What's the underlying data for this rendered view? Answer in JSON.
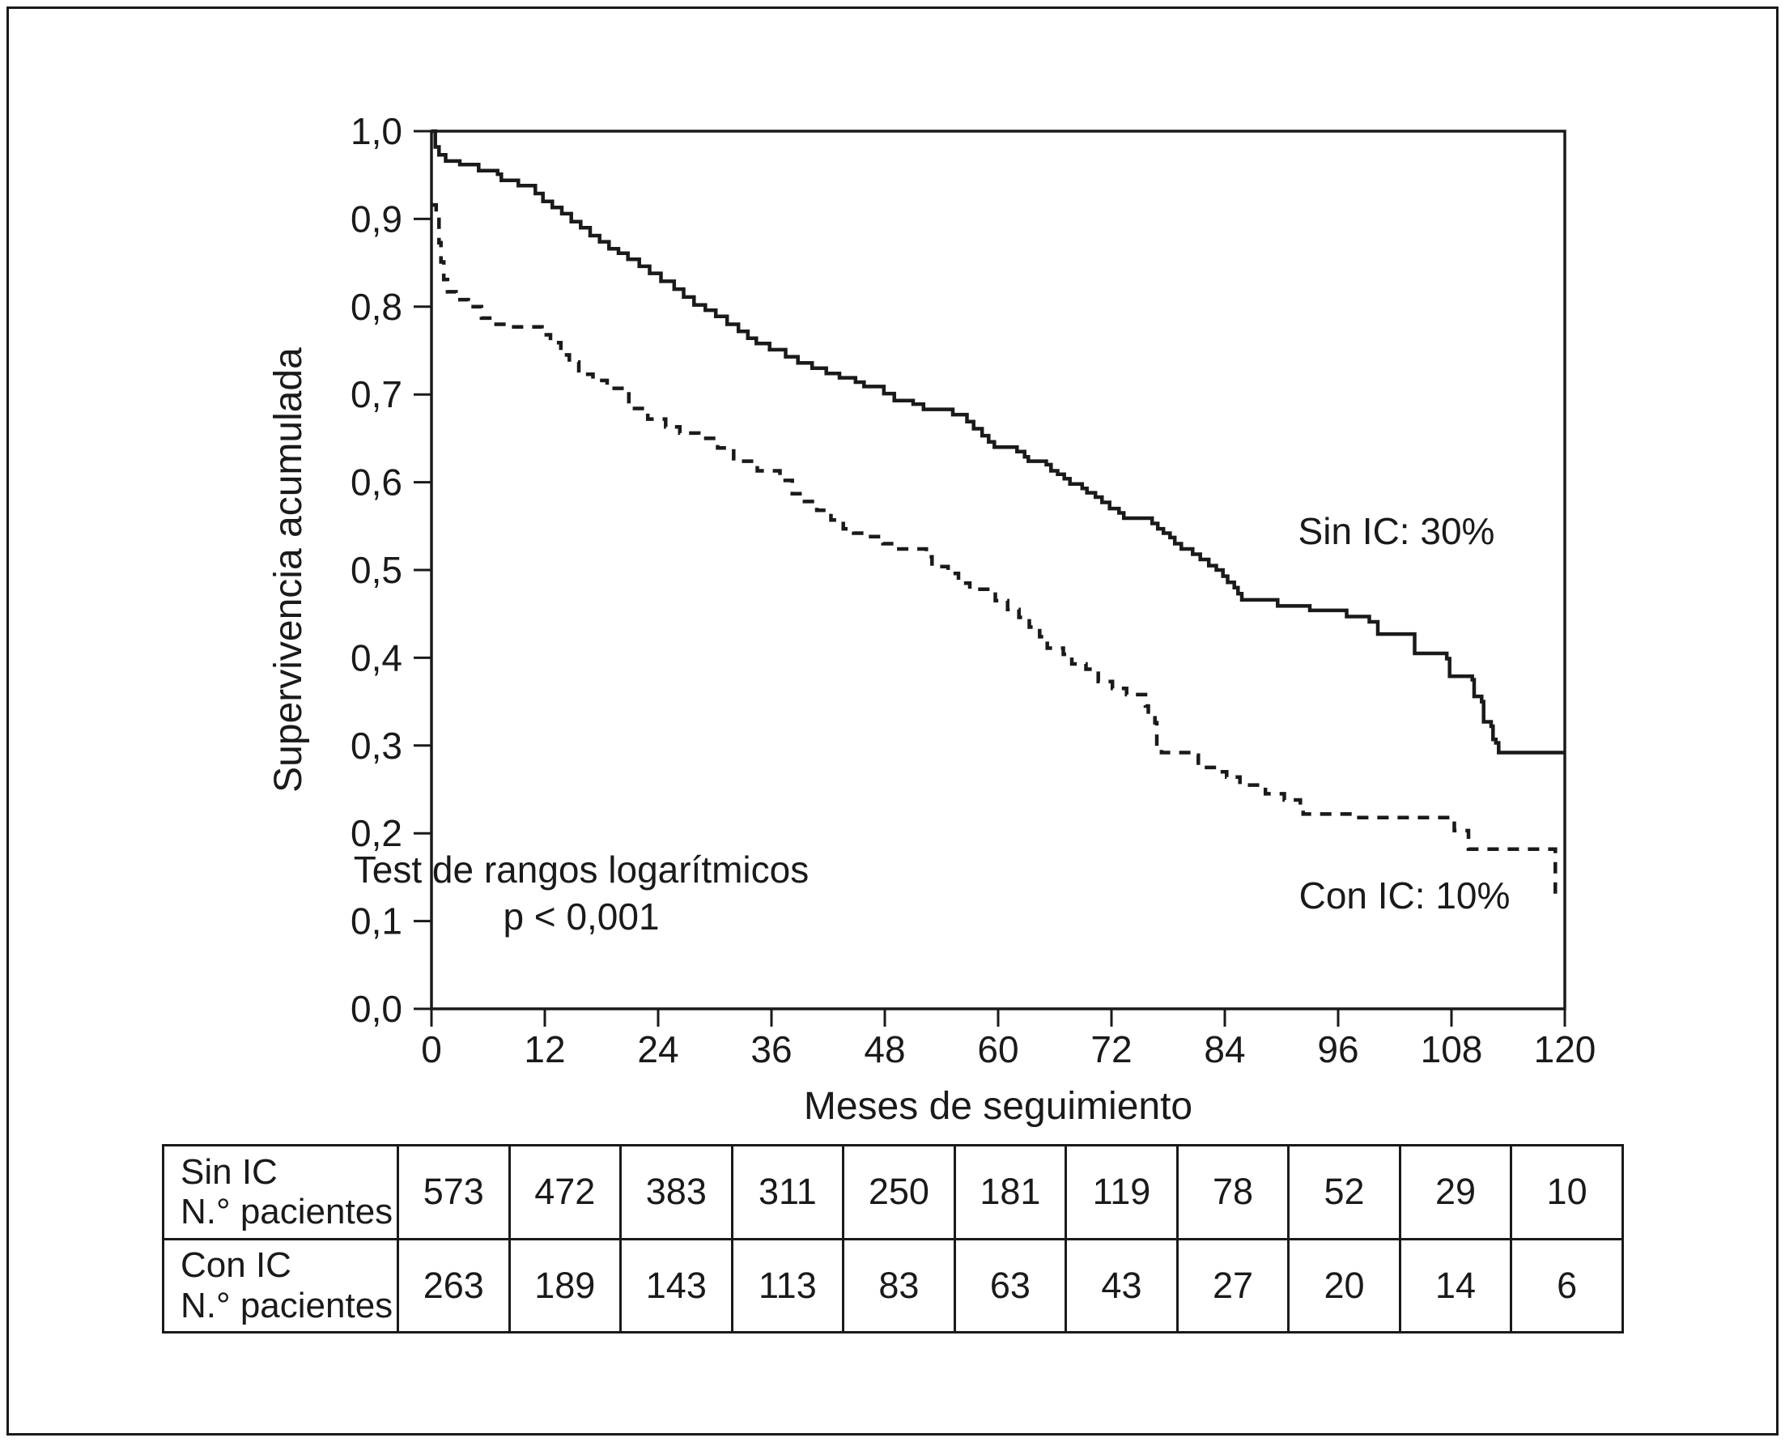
{
  "chart_data": {
    "type": "line",
    "subtype": "kaplan-meier-step",
    "xlabel": "Meses de seguimiento",
    "ylabel": "Supervivencia acumulada",
    "xlim": [
      0,
      120
    ],
    "ylim": [
      0.0,
      1.0
    ],
    "x_ticks": {
      "values": [
        0,
        12,
        24,
        36,
        48,
        60,
        72,
        84,
        96,
        108,
        120
      ],
      "labels": [
        "0",
        "12",
        "24",
        "36",
        "48",
        "60",
        "72",
        "84",
        "96",
        "108",
        "120"
      ]
    },
    "y_ticks": {
      "values": [
        0.0,
        0.1,
        0.2,
        0.3,
        0.4,
        0.5,
        0.6,
        0.7,
        0.8,
        0.9,
        1.0
      ],
      "labels": [
        "0,0",
        "0,1",
        "0,2",
        "0,3",
        "0,4",
        "0,5",
        "0,6",
        "0,7",
        "0,8",
        "0,9",
        "1,0"
      ]
    },
    "grid": "off",
    "legend_position": "labels-on-plot",
    "annotation": {
      "line1": "Test de rangos logarítmicos",
      "line2": "p < 0,001"
    },
    "series": [
      {
        "name": "Sin IC",
        "label": "Sin IC: 30%",
        "line_style": "solid",
        "color": "#1a1a1a",
        "points": [
          [
            0,
            1.0
          ],
          [
            0.4,
            0.982
          ],
          [
            0.8,
            0.973
          ],
          [
            1.5,
            0.966
          ],
          [
            3,
            0.962
          ],
          [
            5,
            0.955
          ],
          [
            7,
            0.951
          ],
          [
            7.4,
            0.944
          ],
          [
            9.2,
            0.938
          ],
          [
            11,
            0.929
          ],
          [
            11.8,
            0.92
          ],
          [
            12.8,
            0.913
          ],
          [
            13.8,
            0.906
          ],
          [
            14.8,
            0.897
          ],
          [
            15.8,
            0.89
          ],
          [
            16.8,
            0.881
          ],
          [
            17.8,
            0.874
          ],
          [
            18.8,
            0.866
          ],
          [
            19.8,
            0.861
          ],
          [
            20.8,
            0.854
          ],
          [
            22,
            0.846
          ],
          [
            23.1,
            0.838
          ],
          [
            24.3,
            0.829
          ],
          [
            25.7,
            0.82
          ],
          [
            26.7,
            0.811
          ],
          [
            27.8,
            0.802
          ],
          [
            29,
            0.796
          ],
          [
            30.1,
            0.789
          ],
          [
            31.3,
            0.78
          ],
          [
            32.5,
            0.772
          ],
          [
            33.5,
            0.764
          ],
          [
            34.4,
            0.758
          ],
          [
            35.8,
            0.751
          ],
          [
            37.5,
            0.743
          ],
          [
            38.8,
            0.736
          ],
          [
            40.3,
            0.73
          ],
          [
            41.8,
            0.724
          ],
          [
            43.2,
            0.719
          ],
          [
            44.9,
            0.714
          ],
          [
            45.8,
            0.709
          ],
          [
            47.9,
            0.701
          ],
          [
            49,
            0.693
          ],
          [
            51,
            0.689
          ],
          [
            52.1,
            0.683
          ],
          [
            55.2,
            0.677
          ],
          [
            56.7,
            0.669
          ],
          [
            57.4,
            0.661
          ],
          [
            58.3,
            0.653
          ],
          [
            59,
            0.646
          ],
          [
            59.6,
            0.64
          ],
          [
            62,
            0.635
          ],
          [
            62.8,
            0.629
          ],
          [
            63.2,
            0.624
          ],
          [
            65.1,
            0.62
          ],
          [
            65.6,
            0.613
          ],
          [
            66.3,
            0.609
          ],
          [
            67,
            0.604
          ],
          [
            67.6,
            0.598
          ],
          [
            68.9,
            0.593
          ],
          [
            69.4,
            0.588
          ],
          [
            70.3,
            0.583
          ],
          [
            71,
            0.577
          ],
          [
            71.8,
            0.57
          ],
          [
            72.8,
            0.565
          ],
          [
            73.3,
            0.559
          ],
          [
            76.3,
            0.553
          ],
          [
            76.9,
            0.547
          ],
          [
            77.5,
            0.542
          ],
          [
            78.2,
            0.537
          ],
          [
            78.7,
            0.53
          ],
          [
            79.4,
            0.524
          ],
          [
            80.6,
            0.518
          ],
          [
            81.4,
            0.512
          ],
          [
            82.3,
            0.505
          ],
          [
            83.1,
            0.5
          ],
          [
            83.8,
            0.493
          ],
          [
            84.3,
            0.486
          ],
          [
            85,
            0.48
          ],
          [
            85.4,
            0.473
          ],
          [
            85.8,
            0.466
          ],
          [
            89.6,
            0.459
          ],
          [
            93,
            0.454
          ],
          [
            96.9,
            0.447
          ],
          [
            99.3,
            0.441
          ],
          [
            100.2,
            0.427
          ],
          [
            104.1,
            0.405
          ],
          [
            107.5,
            0.399
          ],
          [
            107.8,
            0.379
          ],
          [
            110.2,
            0.375
          ],
          [
            110.4,
            0.356
          ],
          [
            111.2,
            0.35
          ],
          [
            111.4,
            0.327
          ],
          [
            112.2,
            0.322
          ],
          [
            112.4,
            0.307
          ],
          [
            112.7,
            0.303
          ],
          [
            113,
            0.292
          ],
          [
            120,
            0.292
          ]
        ]
      },
      {
        "name": "Con IC",
        "label": "Con IC: 10%",
        "line_style": "dashed",
        "color": "#1a1a1a",
        "points": [
          [
            0,
            0.916
          ],
          [
            0.5,
            0.903
          ],
          [
            0.8,
            0.873
          ],
          [
            1,
            0.851
          ],
          [
            1.3,
            0.831
          ],
          [
            1.7,
            0.817
          ],
          [
            2.6,
            0.808
          ],
          [
            3.9,
            0.8
          ],
          [
            5.3,
            0.787
          ],
          [
            6.6,
            0.78
          ],
          [
            8.3,
            0.777
          ],
          [
            11.7,
            0.768
          ],
          [
            12.6,
            0.759
          ],
          [
            13.7,
            0.745
          ],
          [
            14.6,
            0.737
          ],
          [
            15.6,
            0.723
          ],
          [
            17.1,
            0.716
          ],
          [
            18.6,
            0.707
          ],
          [
            20.9,
            0.684
          ],
          [
            22.9,
            0.672
          ],
          [
            24.8,
            0.663
          ],
          [
            26.3,
            0.656
          ],
          [
            28.3,
            0.65
          ],
          [
            30.3,
            0.639
          ],
          [
            32,
            0.624
          ],
          [
            34.5,
            0.613
          ],
          [
            36.9,
            0.602
          ],
          [
            38.2,
            0.587
          ],
          [
            39.5,
            0.578
          ],
          [
            40.8,
            0.568
          ],
          [
            42.3,
            0.557
          ],
          [
            43.6,
            0.547
          ],
          [
            44.7,
            0.542
          ],
          [
            46.3,
            0.538
          ],
          [
            47.8,
            0.53
          ],
          [
            49,
            0.524
          ],
          [
            52.4,
            0.515
          ],
          [
            53,
            0.504
          ],
          [
            54.7,
            0.496
          ],
          [
            55.8,
            0.485
          ],
          [
            57,
            0.478
          ],
          [
            59.7,
            0.465
          ],
          [
            61,
            0.455
          ],
          [
            62.2,
            0.446
          ],
          [
            63.3,
            0.435
          ],
          [
            64.4,
            0.424
          ],
          [
            65.2,
            0.411
          ],
          [
            66.9,
            0.404
          ],
          [
            67.8,
            0.393
          ],
          [
            69.3,
            0.387
          ],
          [
            70.6,
            0.373
          ],
          [
            72.1,
            0.365
          ],
          [
            73.6,
            0.358
          ],
          [
            75.6,
            0.345
          ],
          [
            75.9,
            0.335
          ],
          [
            76.6,
            0.326
          ],
          [
            76.8,
            0.296
          ],
          [
            77.3,
            0.292
          ],
          [
            80.5,
            0.289
          ],
          [
            81.2,
            0.275
          ],
          [
            83.1,
            0.27
          ],
          [
            84.2,
            0.264
          ],
          [
            85.6,
            0.255
          ],
          [
            88.3,
            0.245
          ],
          [
            90.3,
            0.238
          ],
          [
            92,
            0.23
          ],
          [
            92.3,
            0.222
          ],
          [
            97.5,
            0.218
          ],
          [
            108.3,
            0.203
          ],
          [
            109.8,
            0.182
          ],
          [
            118.8,
            0.182
          ],
          [
            119,
            0.13
          ]
        ]
      }
    ]
  },
  "table": {
    "rows": [
      {
        "label_line1": "Sin IC",
        "label_line2": "N.° pacientes",
        "values": [
          "573",
          "472",
          "383",
          "311",
          "250",
          "181",
          "119",
          "78",
          "52",
          "29",
          "10"
        ]
      },
      {
        "label_line1": "Con IC",
        "label_line2": "N.° pacientes",
        "values": [
          "263",
          "189",
          "143",
          "113",
          "83",
          "63",
          "43",
          "27",
          "20",
          "14",
          "6"
        ]
      }
    ]
  }
}
